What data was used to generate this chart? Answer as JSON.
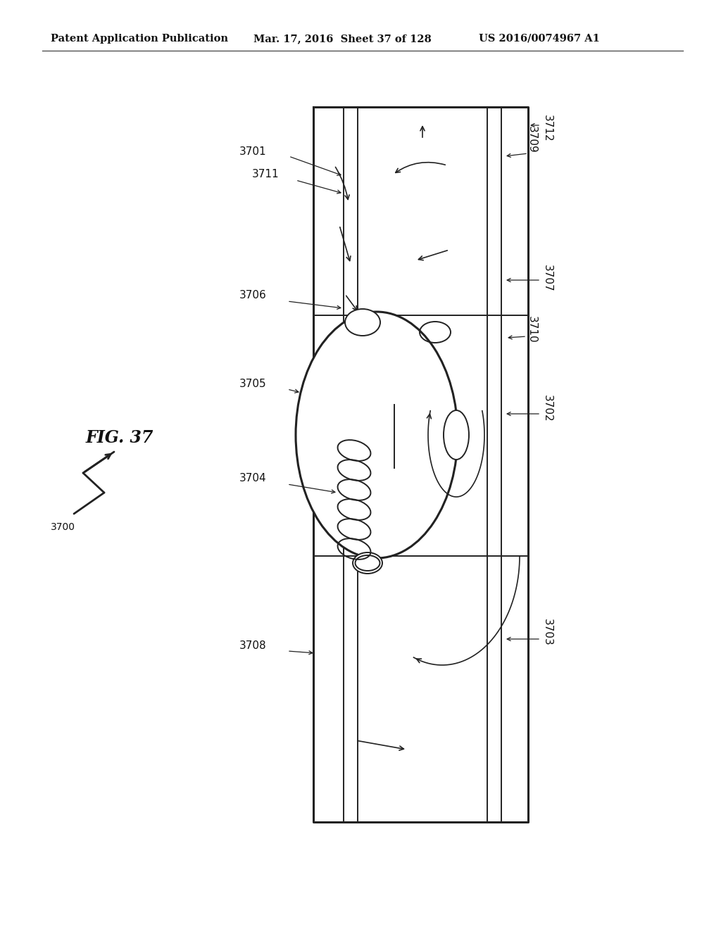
{
  "bg_color": "#ffffff",
  "header_left": "Patent Application Publication",
  "header_mid": "Mar. 17, 2016  Sheet 37 of 128",
  "header_right": "US 2016/0074967 A1",
  "line_color": "#222222",
  "fig_label": "FIG. 37"
}
